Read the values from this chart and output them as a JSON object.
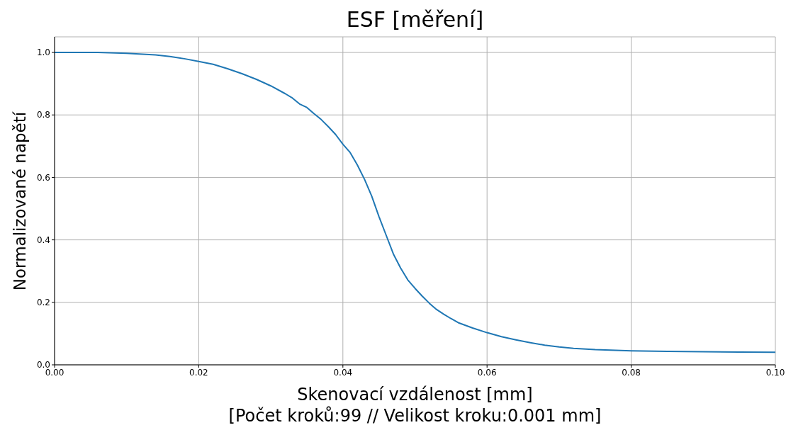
{
  "chart_data": {
    "type": "line",
    "title": "ESF [měření]",
    "xlabel": "Skenovací vzdálenost [mm]",
    "ylabel": "Normalizované napětí",
    "annotations": [
      "[Počet kroků:99 // Velikost kroku:0.001 mm]"
    ],
    "x": [
      0,
      0.006,
      0.01,
      0.014,
      0.016,
      0.018,
      0.02,
      0.022,
      0.024,
      0.026,
      0.028,
      0.03,
      0.032,
      0.033,
      0.034,
      0.035,
      0.036,
      0.037,
      0.038,
      0.039,
      0.04,
      0.041,
      0.042,
      0.043,
      0.044,
      0.045,
      0.046,
      0.047,
      0.048,
      0.049,
      0.05,
      0.051,
      0.052,
      0.053,
      0.054,
      0.055,
      0.056,
      0.058,
      0.06,
      0.062,
      0.064,
      0.066,
      0.068,
      0.07,
      0.072,
      0.075,
      0.08,
      0.085,
      0.09,
      0.095,
      0.1
    ],
    "series": [
      {
        "color": "#1f77b4",
        "values": [
          1.0,
          1.0,
          0.997,
          0.992,
          0.987,
          0.98,
          0.971,
          0.962,
          0.948,
          0.932,
          0.914,
          0.893,
          0.868,
          0.854,
          0.835,
          0.824,
          0.804,
          0.785,
          0.762,
          0.737,
          0.706,
          0.68,
          0.64,
          0.594,
          0.54,
          0.475,
          0.415,
          0.355,
          0.31,
          0.272,
          0.245,
          0.22,
          0.197,
          0.177,
          0.162,
          0.148,
          0.135,
          0.118,
          0.103,
          0.09,
          0.08,
          0.071,
          0.063,
          0.057,
          0.053,
          0.049,
          0.045,
          0.043,
          0.042,
          0.041,
          0.04
        ]
      }
    ],
    "xlim": [
      0,
      0.1
    ],
    "xticks": [
      {
        "value": 0,
        "label": "0.00"
      },
      {
        "value": 0.02,
        "label": "0.02"
      },
      {
        "value": 0.04,
        "label": "0.04"
      },
      {
        "value": 0.06,
        "label": "0.06"
      },
      {
        "value": 0.08,
        "label": "0.08"
      },
      {
        "value": 0.1,
        "label": "0.10"
      }
    ],
    "ylim": [
      0,
      1.05
    ],
    "yticks": [
      {
        "value": 0,
        "label": "0.0"
      },
      {
        "value": 0.2,
        "label": "0.2"
      },
      {
        "value": 0.4,
        "label": "0.4"
      },
      {
        "value": 0.6,
        "label": "0.6"
      },
      {
        "value": 0.8,
        "label": "0.8"
      },
      {
        "value": 1,
        "label": "1.0"
      }
    ],
    "grid": true,
    "legend": false,
    "marker": "none",
    "line_style": "solid"
  }
}
